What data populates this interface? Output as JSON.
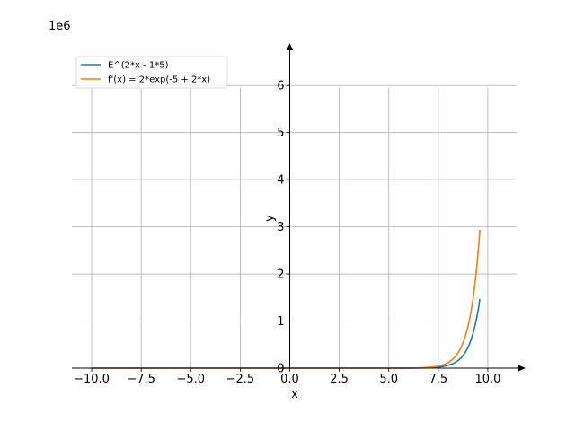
{
  "chart_data": {
    "type": "line",
    "offset_text": "1e6",
    "xlabel": "x",
    "ylabel": "y",
    "xlim": [
      -11.0,
      11.5
    ],
    "ylim": [
      0,
      6.9
    ],
    "x_ticks": [
      -10.0,
      -7.5,
      -5.0,
      -2.5,
      0.0,
      2.5,
      5.0,
      7.5,
      10.0
    ],
    "x_tick_labels": [
      "−10.0",
      "−7.5",
      "−5.0",
      "−2.5",
      "0.0",
      "2.5",
      "5.0",
      "7.5",
      "10.0"
    ],
    "y_ticks": [
      0,
      1,
      2,
      3,
      4,
      5,
      6
    ],
    "y_tick_labels": [
      "0",
      "1",
      "2",
      "3",
      "4",
      "5",
      "6"
    ],
    "grid": true,
    "legend_position": "top-left",
    "x_range": [
      -10,
      9.6
    ],
    "y_scale": 1000000,
    "series": [
      {
        "name": "E^(2*x - 1*5)",
        "color": "#1f77b4",
        "x": [
          -10,
          0,
          5,
          6,
          7,
          7.5,
          8,
          8.5,
          9,
          9.3,
          9.6
        ],
        "y": [
          0,
          0,
          0.00015,
          0.0011,
          0.0081,
          0.022,
          0.06,
          0.163,
          0.442,
          0.806,
          1.47
        ]
      },
      {
        "name": "f'(x) = 2*exp(-5 + 2*x)",
        "color": "#ff7f0e",
        "x": [
          -10,
          0,
          5,
          6,
          7,
          7.5,
          8,
          8.5,
          9,
          9.3,
          9.6
        ],
        "y": [
          0,
          0,
          0.0003,
          0.0022,
          0.0163,
          0.044,
          0.12,
          0.327,
          0.886,
          1.61,
          2.94
        ]
      }
    ]
  }
}
